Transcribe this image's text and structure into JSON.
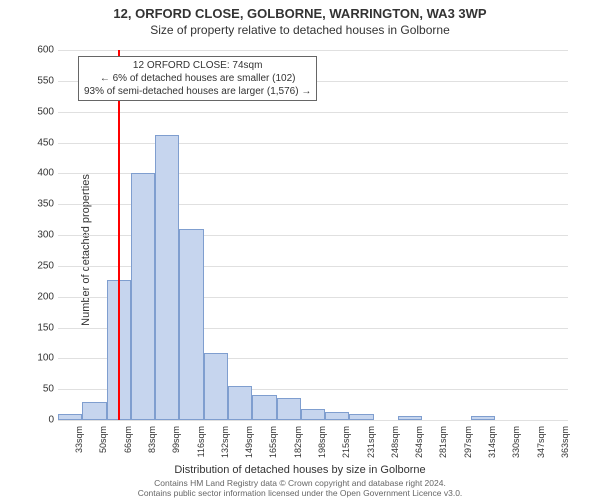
{
  "chart": {
    "type": "histogram",
    "title": "12, ORFORD CLOSE, GOLBORNE, WARRINGTON, WA3 3WP",
    "subtitle": "Size of property relative to detached houses in Golborne",
    "y_axis": {
      "label": "Number of detached properties",
      "min": 0,
      "max": 600,
      "ticks": [
        0,
        50,
        100,
        150,
        200,
        250,
        300,
        350,
        400,
        450,
        500,
        550,
        600
      ]
    },
    "x_axis": {
      "label": "Distribution of detached houses by size in Golborne",
      "ticks": [
        "33sqm",
        "50sqm",
        "66sqm",
        "83sqm",
        "99sqm",
        "116sqm",
        "132sqm",
        "149sqm",
        "165sqm",
        "182sqm",
        "198sqm",
        "215sqm",
        "231sqm",
        "248sqm",
        "264sqm",
        "281sqm",
        "297sqm",
        "314sqm",
        "330sqm",
        "347sqm",
        "363sqm"
      ]
    },
    "bars": [
      10,
      30,
      227,
      400,
      462,
      309,
      109,
      55,
      40,
      35,
      18,
      13,
      10,
      0,
      6,
      0,
      0,
      6,
      0,
      0,
      0
    ],
    "bar_fill": "#c6d5ee",
    "bar_border": "#7f9ecf",
    "marker": {
      "value_sqm": 74,
      "position_index": 2.5,
      "color": "#ff0000"
    },
    "annotation": {
      "line1": "12 ORFORD CLOSE: 74sqm",
      "line2": "← 6% of detached houses are smaller (102)",
      "line3": "93% of semi-detached houses are larger (1,576) →"
    },
    "grid_color": "#e0e0e0",
    "background_color": "#ffffff",
    "attribution": "Contains HM Land Registry data © Crown copyright and database right 2024.\nContains public sector information licensed under the Open Government Licence v3.0."
  }
}
